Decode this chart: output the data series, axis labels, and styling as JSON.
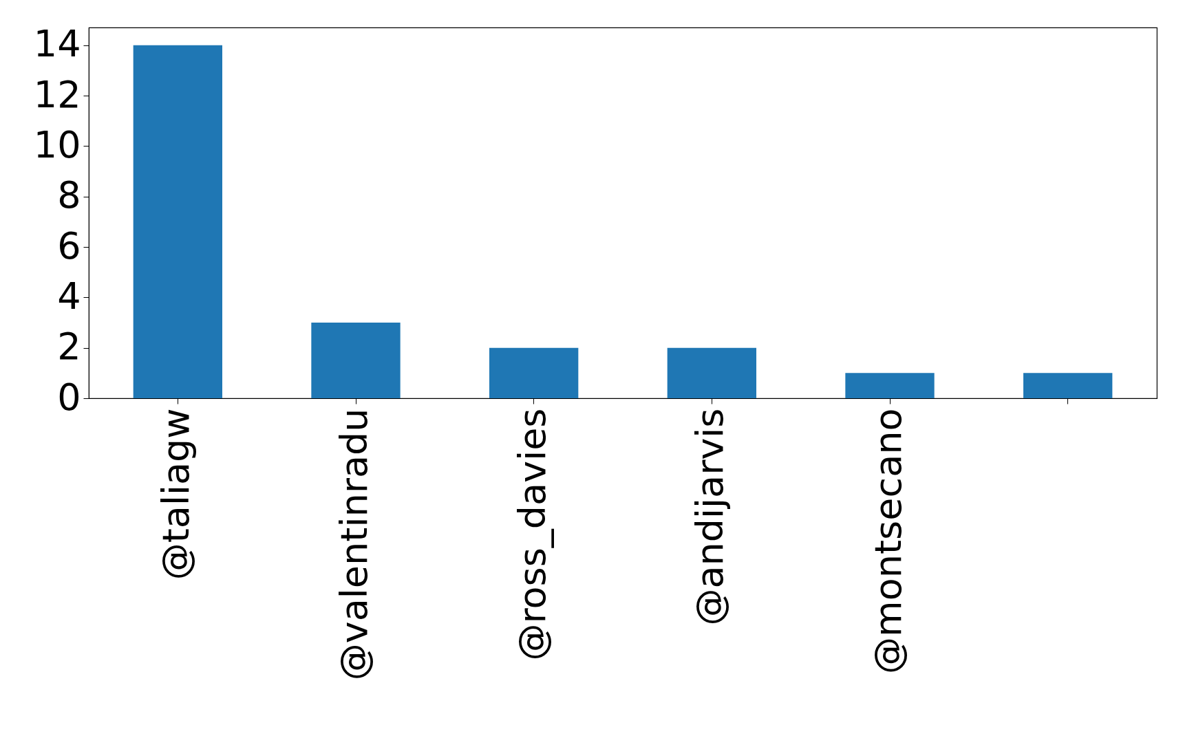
{
  "chart_data": {
    "type": "bar",
    "categories": [
      "@taliagw",
      "@valentinradu",
      "@ross_davies",
      "@andijarvis",
      "@montsecano",
      null
    ],
    "series": [
      {
        "color": "#1f77b4",
        "values": [
          14,
          3,
          2,
          2,
          1,
          1
        ]
      }
    ],
    "ylim": [
      0,
      14.7
    ],
    "yticks": [
      0,
      2,
      4,
      6,
      8,
      10,
      12,
      14
    ],
    "grid": false,
    "legend": false
  }
}
